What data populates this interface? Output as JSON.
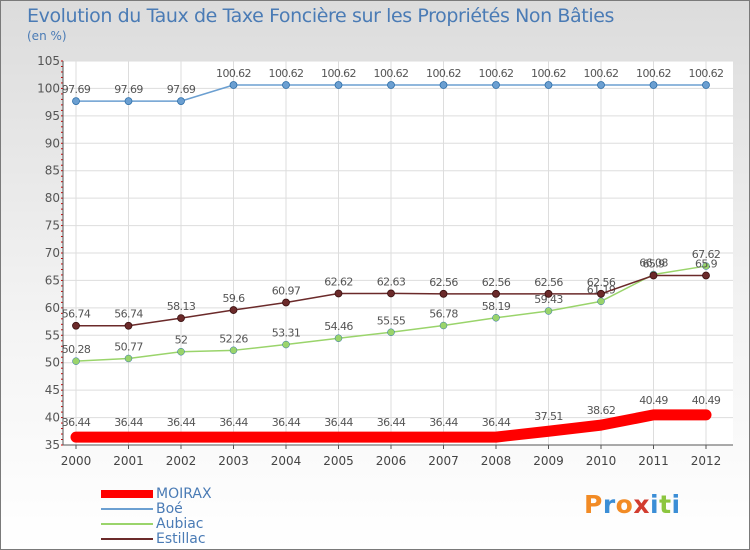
{
  "title": "Evolution du Taux de Taxe Foncière sur les Propriétés Non Bâties",
  "subtitle": "(en %)",
  "logo_text": "Proxiti",
  "logo_colors": [
    "#f28b25",
    "#3b8ed6",
    "#f28b25",
    "#d23c2f",
    "#3b8ed6",
    "#8cc63f",
    "#3b8ed6"
  ],
  "chart_data": {
    "type": "line",
    "x": [
      "2000",
      "2001",
      "2002",
      "2003",
      "2004",
      "2005",
      "2006",
      "2007",
      "2008",
      "2009",
      "2010",
      "2011",
      "2012"
    ],
    "ylim": [
      35,
      105
    ],
    "yticks": [
      "35",
      "40",
      "45",
      "50",
      "55",
      "60",
      "65",
      "70",
      "75",
      "80",
      "85",
      "90",
      "95",
      "100",
      "105"
    ],
    "grid": true,
    "legend_position": "bottom-left",
    "series": [
      {
        "name": "MOIRAX",
        "color": "#ff0000",
        "labels": [
          "36.44",
          "36.44",
          "36.44",
          "36.44",
          "36.44",
          "36.44",
          "36.44",
          "36.44",
          "36.44",
          "37.51",
          "38.62",
          "40.49",
          "40.49"
        ]
      },
      {
        "name": "Boé",
        "color": "#6b9fd1",
        "labels": [
          "97.69",
          "97.69",
          "97.69",
          "100.62",
          "100.62",
          "100.62",
          "100.62",
          "100.62",
          "100.62",
          "100.62",
          "100.62",
          "100.62",
          "100.62"
        ]
      },
      {
        "name": "Aubiac",
        "color": "#9ad46b",
        "labels": [
          "50.28",
          "50.77",
          "52",
          "52.26",
          "53.31",
          "54.46",
          "55.55",
          "56.78",
          "58.19",
          "59.43",
          "61.19",
          "66.08",
          "67.62"
        ]
      },
      {
        "name": "Estillac",
        "color": "#6b2a2a",
        "labels": [
          "56.74",
          "56.74",
          "58.13",
          "59.6",
          "60.97",
          "62.62",
          "62.63",
          "62.56",
          "62.56",
          "62.56",
          "62.56",
          "65.9",
          "65.9"
        ]
      }
    ]
  }
}
